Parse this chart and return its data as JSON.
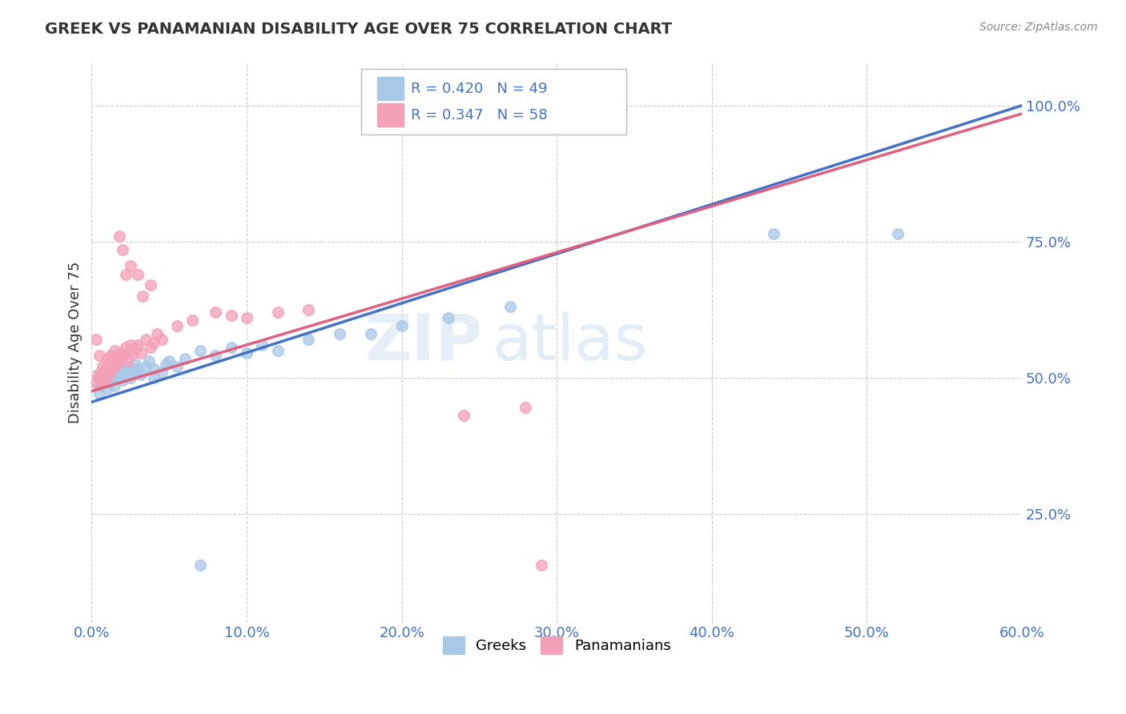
{
  "title": "GREEK VS PANAMANIAN DISABILITY AGE OVER 75 CORRELATION CHART",
  "source_text": "Source: ZipAtlas.com",
  "ylabel": "Disability Age Over 75",
  "xlim": [
    0.0,
    0.6
  ],
  "ylim": [
    0.05,
    1.08
  ],
  "xtick_labels": [
    "0.0%",
    "",
    "10.0%",
    "",
    "20.0%",
    "",
    "30.0%",
    "",
    "40.0%",
    "",
    "50.0%",
    "",
    "60.0%"
  ],
  "xtick_values": [
    0.0,
    0.05,
    0.1,
    0.15,
    0.2,
    0.25,
    0.3,
    0.35,
    0.4,
    0.45,
    0.5,
    0.55,
    0.6
  ],
  "ytick_labels": [
    "25.0%",
    "50.0%",
    "75.0%",
    "100.0%"
  ],
  "ytick_values": [
    0.25,
    0.5,
    0.75,
    1.0
  ],
  "greek_color": "#a8c8e8",
  "panamanian_color": "#f4a0b8",
  "greek_line_color": "#4472c4",
  "panamanian_line_color": "#e06080",
  "greek_R": 0.42,
  "greek_N": 49,
  "panamanian_R": 0.347,
  "panamanian_N": 58,
  "watermark_zip": "ZIP",
  "watermark_atlas": "atlas",
  "background_color": "#ffffff",
  "greek_points": [
    [
      0.005,
      0.485
    ],
    [
      0.005,
      0.5
    ],
    [
      0.005,
      0.47
    ],
    [
      0.007,
      0.49
    ],
    [
      0.008,
      0.495
    ],
    [
      0.01,
      0.48
    ],
    [
      0.01,
      0.5
    ],
    [
      0.01,
      0.515
    ],
    [
      0.012,
      0.49
    ],
    [
      0.012,
      0.505
    ],
    [
      0.013,
      0.495
    ],
    [
      0.015,
      0.51
    ],
    [
      0.015,
      0.485
    ],
    [
      0.017,
      0.5
    ],
    [
      0.018,
      0.515
    ],
    [
      0.02,
      0.495
    ],
    [
      0.02,
      0.51
    ],
    [
      0.022,
      0.505
    ],
    [
      0.023,
      0.52
    ],
    [
      0.025,
      0.5
    ],
    [
      0.025,
      0.515
    ],
    [
      0.027,
      0.51
    ],
    [
      0.028,
      0.525
    ],
    [
      0.03,
      0.515
    ],
    [
      0.032,
      0.505
    ],
    [
      0.035,
      0.52
    ],
    [
      0.037,
      0.53
    ],
    [
      0.04,
      0.515
    ],
    [
      0.04,
      0.5
    ],
    [
      0.045,
      0.51
    ],
    [
      0.048,
      0.525
    ],
    [
      0.05,
      0.53
    ],
    [
      0.055,
      0.52
    ],
    [
      0.06,
      0.535
    ],
    [
      0.07,
      0.55
    ],
    [
      0.08,
      0.54
    ],
    [
      0.09,
      0.555
    ],
    [
      0.1,
      0.545
    ],
    [
      0.11,
      0.56
    ],
    [
      0.12,
      0.55
    ],
    [
      0.14,
      0.57
    ],
    [
      0.16,
      0.58
    ],
    [
      0.18,
      0.58
    ],
    [
      0.2,
      0.595
    ],
    [
      0.23,
      0.61
    ],
    [
      0.27,
      0.63
    ],
    [
      0.44,
      0.765
    ],
    [
      0.52,
      0.765
    ],
    [
      0.07,
      0.155
    ]
  ],
  "panamanian_points": [
    [
      0.003,
      0.49
    ],
    [
      0.004,
      0.505
    ],
    [
      0.005,
      0.5
    ],
    [
      0.006,
      0.51
    ],
    [
      0.006,
      0.49
    ],
    [
      0.007,
      0.505
    ],
    [
      0.007,
      0.52
    ],
    [
      0.008,
      0.51
    ],
    [
      0.008,
      0.495
    ],
    [
      0.009,
      0.515
    ],
    [
      0.01,
      0.52
    ],
    [
      0.01,
      0.5
    ],
    [
      0.01,
      0.535
    ],
    [
      0.011,
      0.51
    ],
    [
      0.012,
      0.525
    ],
    [
      0.012,
      0.54
    ],
    [
      0.013,
      0.515
    ],
    [
      0.013,
      0.53
    ],
    [
      0.014,
      0.52
    ],
    [
      0.015,
      0.535
    ],
    [
      0.015,
      0.55
    ],
    [
      0.016,
      0.525
    ],
    [
      0.017,
      0.54
    ],
    [
      0.018,
      0.53
    ],
    [
      0.019,
      0.545
    ],
    [
      0.02,
      0.54
    ],
    [
      0.022,
      0.555
    ],
    [
      0.023,
      0.53
    ],
    [
      0.024,
      0.545
    ],
    [
      0.025,
      0.56
    ],
    [
      0.027,
      0.545
    ],
    [
      0.028,
      0.555
    ],
    [
      0.03,
      0.56
    ],
    [
      0.032,
      0.545
    ],
    [
      0.035,
      0.57
    ],
    [
      0.038,
      0.555
    ],
    [
      0.04,
      0.565
    ],
    [
      0.042,
      0.58
    ],
    [
      0.045,
      0.57
    ],
    [
      0.018,
      0.76
    ],
    [
      0.02,
      0.735
    ],
    [
      0.022,
      0.69
    ],
    [
      0.025,
      0.705
    ],
    [
      0.03,
      0.69
    ],
    [
      0.033,
      0.65
    ],
    [
      0.038,
      0.67
    ],
    [
      0.055,
      0.595
    ],
    [
      0.065,
      0.605
    ],
    [
      0.08,
      0.62
    ],
    [
      0.09,
      0.615
    ],
    [
      0.1,
      0.61
    ],
    [
      0.12,
      0.62
    ],
    [
      0.14,
      0.625
    ],
    [
      0.003,
      0.57
    ],
    [
      0.005,
      0.54
    ],
    [
      0.24,
      0.43
    ],
    [
      0.28,
      0.445
    ],
    [
      0.29,
      0.155
    ]
  ],
  "legend_title_greek": "R = 0.420   N = 49",
  "legend_title_pan": "R = 0.347   N = 58"
}
